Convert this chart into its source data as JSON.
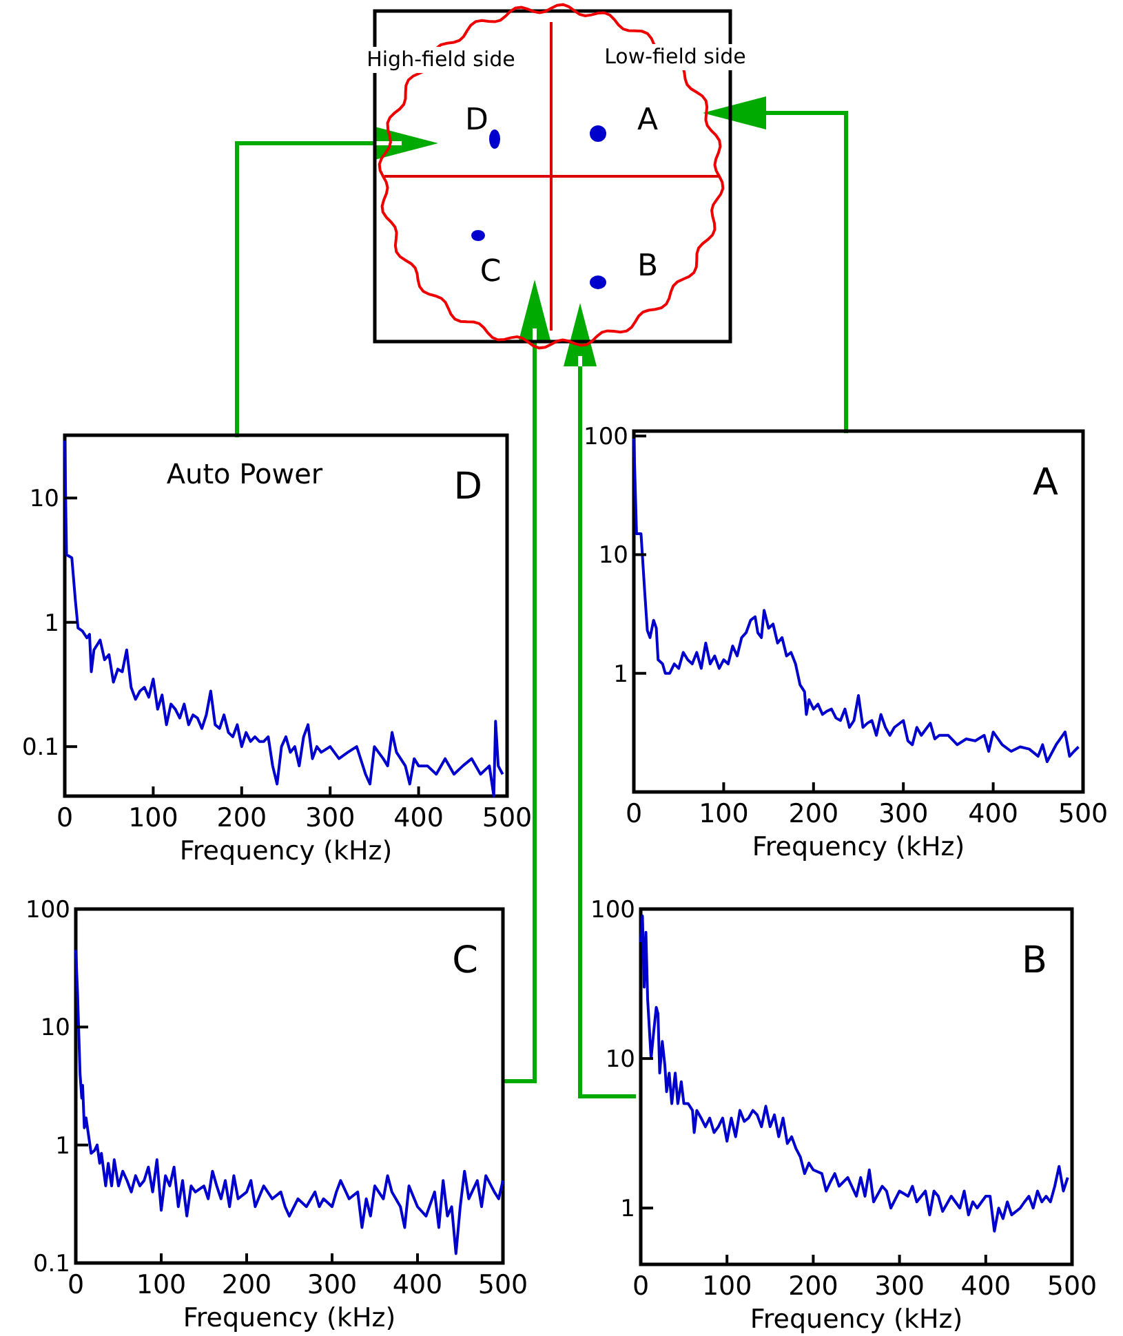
{
  "chart_data": [
    {
      "type": "other",
      "annotations": [
        "High-field side",
        "Low-field side",
        "D",
        "A",
        "C",
        "B"
      ]
    },
    {
      "type": "line",
      "title": "D",
      "annotations": [
        "Auto Power"
      ],
      "xlabel": "Frequency (kHz)",
      "log": "y",
      "xlim": [
        0,
        500
      ],
      "ylim": [
        0.04,
        32
      ],
      "xticks": [
        0,
        100,
        200,
        300,
        400,
        500
      ],
      "yticks": [
        0.1,
        1,
        10
      ],
      "color": "#0000cc",
      "x": [
        0,
        2,
        8,
        12,
        15,
        20,
        25,
        28,
        30,
        33,
        40,
        45,
        50,
        55,
        60,
        65,
        70,
        75,
        80,
        85,
        90,
        95,
        100,
        105,
        110,
        115,
        120,
        125,
        130,
        135,
        140,
        145,
        150,
        155,
        160,
        165,
        170,
        175,
        180,
        185,
        190,
        195,
        200,
        205,
        210,
        215,
        220,
        225,
        230,
        235,
        240,
        245,
        250,
        255,
        260,
        265,
        270,
        275,
        280,
        285,
        290,
        300,
        310,
        320,
        330,
        340,
        345,
        350,
        360,
        365,
        370,
        375,
        385,
        390,
        395,
        400,
        410,
        420,
        430,
        440,
        450,
        460,
        470,
        480,
        485,
        487,
        490,
        495
      ],
      "values": [
        29,
        3.5,
        3.3,
        1.5,
        0.9,
        0.85,
        0.75,
        0.8,
        0.4,
        0.6,
        0.72,
        0.5,
        0.55,
        0.33,
        0.42,
        0.4,
        0.6,
        0.3,
        0.24,
        0.28,
        0.3,
        0.25,
        0.35,
        0.2,
        0.26,
        0.15,
        0.22,
        0.2,
        0.17,
        0.22,
        0.15,
        0.18,
        0.17,
        0.14,
        0.18,
        0.28,
        0.15,
        0.14,
        0.18,
        0.13,
        0.12,
        0.15,
        0.1,
        0.13,
        0.11,
        0.12,
        0.11,
        0.11,
        0.12,
        0.07,
        0.05,
        0.1,
        0.12,
        0.09,
        0.1,
        0.07,
        0.12,
        0.15,
        0.08,
        0.1,
        0.09,
        0.1,
        0.08,
        0.09,
        0.1,
        0.06,
        0.05,
        0.1,
        0.08,
        0.07,
        0.13,
        0.09,
        0.07,
        0.05,
        0.08,
        0.07,
        0.07,
        0.06,
        0.08,
        0.06,
        0.07,
        0.08,
        0.06,
        0.07,
        0.04,
        0.16,
        0.07,
        0.06
      ]
    },
    {
      "type": "line",
      "title": "A",
      "xlabel": "Frequency (kHz)",
      "log": "y",
      "xlim": [
        0,
        500
      ],
      "ylim": [
        0.1,
        110
      ],
      "xticks": [
        0,
        100,
        200,
        300,
        400,
        500
      ],
      "yticks": [
        1,
        10,
        100
      ],
      "color": "#0000cc",
      "x": [
        0,
        3,
        8,
        12,
        15,
        18,
        22,
        25,
        27,
        32,
        35,
        40,
        45,
        50,
        55,
        60,
        65,
        70,
        75,
        80,
        85,
        90,
        95,
        100,
        105,
        110,
        115,
        120,
        125,
        130,
        135,
        138,
        142,
        145,
        150,
        155,
        160,
        165,
        170,
        175,
        180,
        185,
        190,
        192,
        195,
        200,
        205,
        210,
        215,
        220,
        225,
        230,
        235,
        240,
        245,
        250,
        255,
        260,
        265,
        270,
        275,
        280,
        285,
        290,
        300,
        305,
        310,
        315,
        320,
        330,
        335,
        340,
        350,
        360,
        370,
        380,
        390,
        395,
        400,
        410,
        420,
        430,
        440,
        450,
        455,
        460,
        470,
        480,
        485,
        490,
        495
      ],
      "values": [
        95,
        15,
        15,
        5,
        2.3,
        2,
        2.8,
        2.4,
        1.3,
        1.2,
        1,
        1,
        1.2,
        1.1,
        1.5,
        1.3,
        1.2,
        1.5,
        1.1,
        1.8,
        1.2,
        1.4,
        1.1,
        1.3,
        1.2,
        1.7,
        1.4,
        2,
        2.2,
        2.8,
        3,
        2.2,
        2,
        3.4,
        2.4,
        2.6,
        1.8,
        2,
        1.4,
        1.5,
        1.2,
        0.8,
        0.7,
        0.45,
        0.6,
        0.5,
        0.55,
        0.45,
        0.48,
        0.5,
        0.42,
        0.4,
        0.5,
        0.35,
        0.4,
        0.65,
        0.35,
        0.38,
        0.4,
        0.3,
        0.45,
        0.35,
        0.3,
        0.35,
        0.4,
        0.27,
        0.25,
        0.35,
        0.3,
        0.38,
        0.28,
        0.3,
        0.3,
        0.25,
        0.28,
        0.27,
        0.3,
        0.22,
        0.32,
        0.25,
        0.22,
        0.24,
        0.23,
        0.2,
        0.25,
        0.18,
        0.25,
        0.32,
        0.2,
        0.22,
        0.24
      ]
    },
    {
      "type": "line",
      "title": "C",
      "xlabel": "Frequency (kHz)",
      "log": "y",
      "xlim": [
        0,
        500
      ],
      "ylim": [
        0.1,
        100
      ],
      "xticks": [
        0,
        100,
        200,
        300,
        400,
        500
      ],
      "yticks": [
        0.1,
        1,
        10,
        100
      ],
      "color": "#0000cc",
      "x": [
        0,
        2,
        5,
        7,
        8,
        10,
        12,
        15,
        18,
        22,
        25,
        28,
        30,
        35,
        38,
        42,
        45,
        50,
        55,
        60,
        65,
        70,
        75,
        80,
        85,
        90,
        95,
        100,
        105,
        110,
        115,
        120,
        125,
        130,
        135,
        140,
        150,
        155,
        160,
        165,
        170,
        175,
        180,
        185,
        190,
        200,
        205,
        210,
        220,
        230,
        240,
        245,
        250,
        260,
        270,
        280,
        285,
        290,
        300,
        305,
        310,
        320,
        330,
        335,
        340,
        345,
        350,
        360,
        365,
        370,
        380,
        385,
        390,
        400,
        410,
        420,
        425,
        430,
        435,
        440,
        445,
        450,
        455,
        460,
        470,
        475,
        480,
        490,
        495,
        500
      ],
      "values": [
        45,
        20,
        4,
        2.5,
        3.2,
        1.4,
        1.7,
        1.2,
        0.85,
        0.9,
        1,
        0.7,
        0.85,
        0.45,
        0.7,
        0.45,
        0.75,
        0.45,
        0.6,
        0.5,
        0.4,
        0.55,
        0.45,
        0.5,
        0.65,
        0.4,
        0.75,
        0.28,
        0.55,
        0.45,
        0.65,
        0.3,
        0.5,
        0.25,
        0.45,
        0.4,
        0.45,
        0.35,
        0.6,
        0.45,
        0.35,
        0.5,
        0.3,
        0.55,
        0.35,
        0.4,
        0.5,
        0.3,
        0.45,
        0.35,
        0.4,
        0.3,
        0.25,
        0.35,
        0.3,
        0.4,
        0.3,
        0.35,
        0.3,
        0.4,
        0.5,
        0.35,
        0.4,
        0.2,
        0.35,
        0.25,
        0.45,
        0.35,
        0.55,
        0.4,
        0.3,
        0.2,
        0.45,
        0.3,
        0.25,
        0.4,
        0.2,
        0.5,
        0.25,
        0.3,
        0.12,
        0.3,
        0.6,
        0.35,
        0.5,
        0.3,
        0.55,
        0.4,
        0.35,
        0.5
      ]
    },
    {
      "type": "line",
      "title": "B",
      "xlabel": "Frequency (kHz)",
      "log": "y",
      "xlim": [
        0,
        500
      ],
      "ylim": [
        0.42,
        100
      ],
      "xticks": [
        0,
        100,
        200,
        300,
        400,
        500
      ],
      "yticks": [
        1,
        10,
        100
      ],
      "color": "#0000cc",
      "x": [
        0,
        2,
        4,
        6,
        8,
        12,
        15,
        18,
        20,
        22,
        25,
        28,
        30,
        33,
        36,
        40,
        43,
        47,
        50,
        55,
        60,
        62,
        65,
        70,
        75,
        80,
        85,
        90,
        95,
        100,
        105,
        110,
        115,
        120,
        125,
        130,
        135,
        140,
        145,
        150,
        155,
        160,
        165,
        170,
        175,
        180,
        185,
        190,
        195,
        200,
        210,
        215,
        220,
        225,
        230,
        240,
        250,
        255,
        260,
        265,
        270,
        280,
        285,
        290,
        300,
        310,
        315,
        320,
        330,
        335,
        340,
        345,
        350,
        360,
        370,
        375,
        380,
        385,
        390,
        400,
        405,
        410,
        415,
        420,
        425,
        430,
        440,
        445,
        450,
        455,
        460,
        465,
        470,
        475,
        480,
        485,
        490,
        495
      ],
      "values": [
        60,
        90,
        30,
        70,
        25,
        10,
        15,
        22,
        20,
        8,
        13,
        9,
        6,
        8,
        5,
        8,
        5,
        7,
        5,
        5,
        4.5,
        3.2,
        4.5,
        4,
        3.5,
        4,
        3.2,
        3.5,
        4,
        2.8,
        4,
        3,
        4.5,
        3.8,
        4,
        4.5,
        4.2,
        3.5,
        4.8,
        3.5,
        4.2,
        3,
        4,
        2.7,
        3,
        2.5,
        2.2,
        1.7,
        2,
        1.8,
        1.7,
        1.3,
        1.5,
        1.7,
        1.4,
        1.6,
        1.2,
        1.6,
        1.2,
        1.8,
        1.1,
        1.4,
        1.3,
        1,
        1.3,
        1.2,
        1.4,
        1.1,
        1.3,
        0.9,
        1.3,
        1.2,
        0.95,
        1.2,
        1,
        1.3,
        0.9,
        1.1,
        1,
        1.2,
        1.2,
        0.7,
        1,
        0.85,
        1.1,
        0.9,
        1,
        1.1,
        1.2,
        1,
        1.3,
        1.1,
        1.2,
        1.1,
        1.4,
        1.9,
        1.3,
        1.6
      ]
    }
  ]
}
